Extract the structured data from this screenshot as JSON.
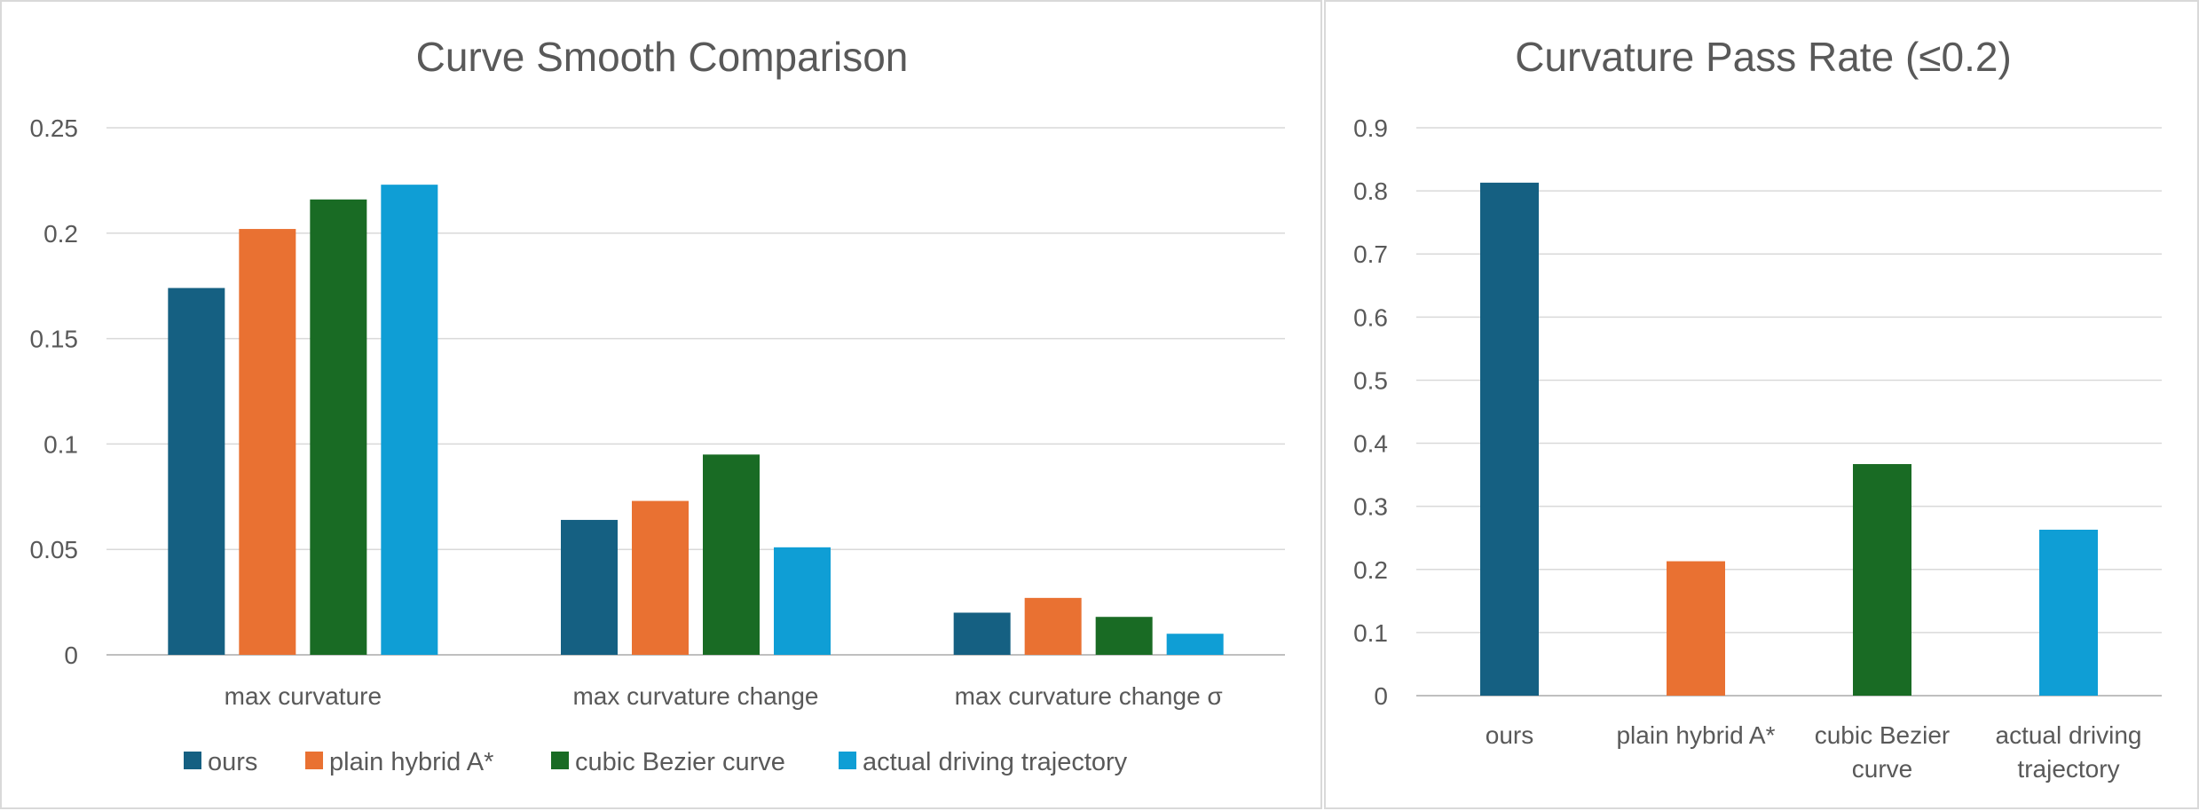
{
  "chart_data": [
    {
      "type": "bar",
      "title": "Curve Smooth Comparison",
      "categories": [
        "max curvature",
        "max curvature change",
        "max curvature change σ"
      ],
      "series": [
        {
          "name": "ours",
          "color": "#156082",
          "values": [
            0.174,
            0.064,
            0.02
          ]
        },
        {
          "name": "plain hybrid A*",
          "color": "#E97132",
          "values": [
            0.202,
            0.073,
            0.027
          ]
        },
        {
          "name": "cubic Bezier curve",
          "color": "#196B24",
          "values": [
            0.216,
            0.095,
            0.018
          ]
        },
        {
          "name": "actual  driving trajectory",
          "color": "#0F9ED5",
          "values": [
            0.223,
            0.051,
            0.01
          ]
        }
      ],
      "yticks": [
        "0",
        "0.05",
        "0.1",
        "0.15",
        "0.2",
        "0.25"
      ],
      "ylim": [
        0,
        0.25
      ],
      "grid": true,
      "legend": "bottom"
    },
    {
      "type": "bar",
      "title": "Curvature Pass Rate (≤0.2)",
      "categories": [
        [
          "ours"
        ],
        [
          "plain hybrid A*"
        ],
        [
          "cubic Bezier",
          "curve"
        ],
        [
          "actual  driving",
          "trajectory"
        ]
      ],
      "values": [
        0.813,
        0.213,
        0.367,
        0.263
      ],
      "colors": [
        "#156082",
        "#E97132",
        "#196B24",
        "#0F9ED5"
      ],
      "yticks": [
        "0",
        "0.1",
        "0.2",
        "0.3",
        "0.4",
        "0.5",
        "0.6",
        "0.7",
        "0.8",
        "0.9"
      ],
      "ylim": [
        0,
        0.9
      ],
      "grid": true,
      "legend": "none"
    }
  ]
}
